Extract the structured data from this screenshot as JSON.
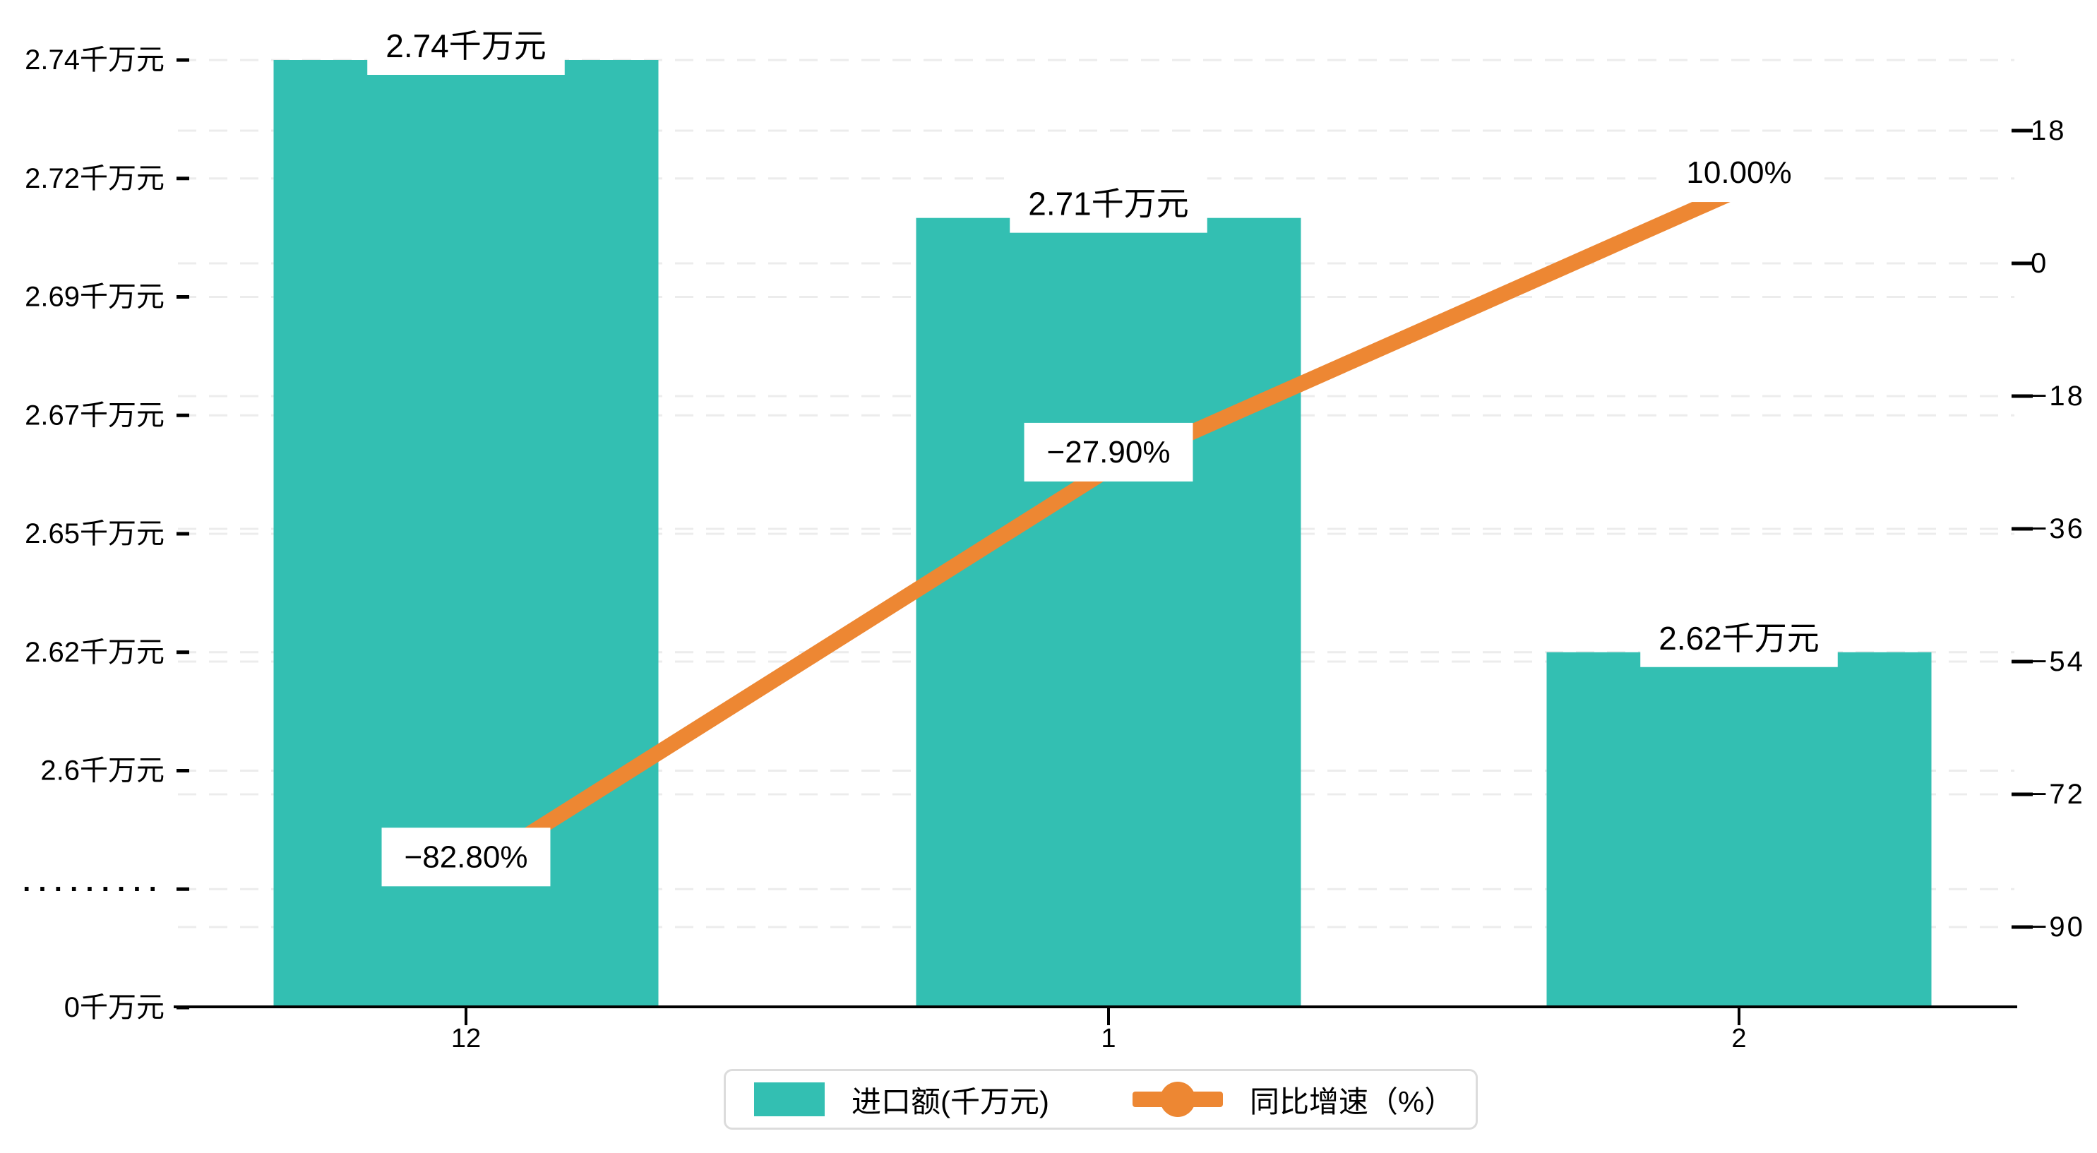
{
  "chart_data": {
    "type": "bar",
    "categories": [
      "12",
      "1",
      "2"
    ],
    "series": [
      {
        "name": "进口额(千万元)",
        "type": "bar",
        "axis": "left",
        "values": [
          2.74,
          2.71,
          2.62
        ],
        "data_labels": [
          "2.74千万元",
          "2.71千万元",
          "2.62千万元"
        ],
        "color": "#33BFB2"
      },
      {
        "name": "同比增速（%）",
        "type": "line",
        "axis": "right",
        "values": [
          -82.8,
          -27.9,
          10.0
        ],
        "data_labels": [
          "−82.80%",
          "−27.90%",
          "10.00%"
        ],
        "color": "#ED8733"
      }
    ],
    "left_axis": {
      "tick_labels": [
        "2.74千万元",
        "2.72千万元",
        "2.69千万元",
        "2.67千万元",
        "2.65千万元",
        "2.62千万元",
        "2.6千万元",
        "·········",
        "0千万元"
      ],
      "tick_values": [
        2.74,
        2.72,
        2.69,
        2.67,
        2.65,
        2.62,
        2.6,
        null,
        0
      ],
      "axis_break_label": "·········",
      "axis_break": true
    },
    "right_axis": {
      "tick_values": [
        18,
        0,
        -18,
        -36,
        -54,
        -72,
        -90
      ],
      "tick_labels": [
        "18",
        "0",
        "−18",
        "−36",
        "−54",
        "−72",
        "−90"
      ]
    },
    "legend": {
      "position": "bottom-center",
      "items": [
        "进口额(千万元)",
        "同比增速（%）"
      ]
    },
    "grid": {
      "dashed": true,
      "color": "#ececec"
    },
    "axis_line_color": "#000000",
    "background": "#ffffff"
  },
  "legend": {
    "bar_label": "进口额(千万元)",
    "line_label": "同比增速（%）"
  }
}
